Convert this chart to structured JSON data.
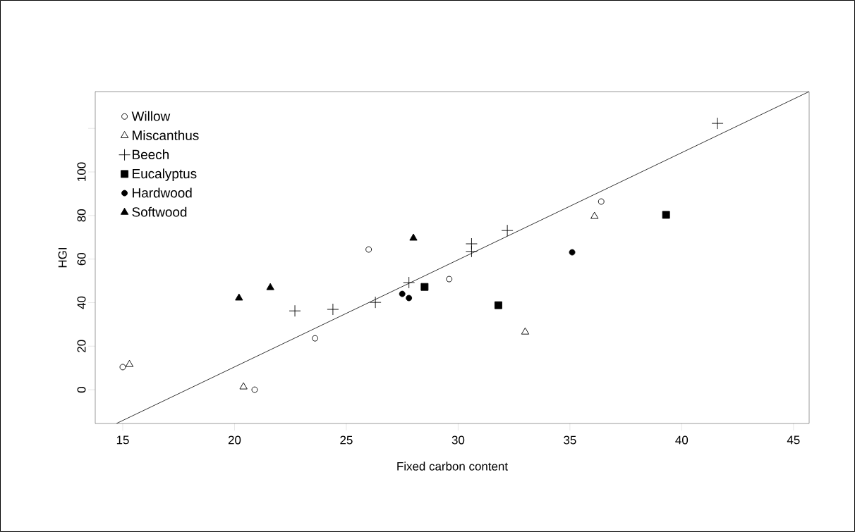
{
  "chart_data": {
    "type": "scatter",
    "xlabel": "Fixed carbon content",
    "ylabel": "HGI",
    "xlim": [
      13.77,
      45.7
    ],
    "ylim": [
      -15.5,
      136.9
    ],
    "xticks": [
      15,
      20,
      25,
      30,
      35,
      40,
      45
    ],
    "yticks": [
      0,
      20,
      40,
      60,
      80,
      100,
      {
        "value": 120,
        "label": null
      }
    ],
    "grid": false,
    "legend": "top left",
    "series": [
      {
        "name": "Willow",
        "color": "#000000",
        "marker": "circle",
        "x": [
          15.0,
          20.9,
          23.6,
          26.0,
          29.6,
          36.4
        ],
        "values": [
          10.4,
          0,
          23.6,
          64.4,
          50.8,
          86.4
        ]
      },
      {
        "name": "Miscanthus",
        "color": "#000000",
        "marker": "triangle",
        "x": [
          15.3,
          20.4,
          33.0,
          36.1
        ],
        "values": [
          11.6,
          1.3,
          26.5,
          79.6
        ]
      },
      {
        "name": "Beech",
        "color": "#000000",
        "marker": "cross",
        "x": [
          22.7,
          24.4,
          26.3,
          27.8,
          30.6,
          30.6,
          32.2,
          41.6
        ],
        "values": [
          36.2,
          36.9,
          40.1,
          49.2,
          67.0,
          63.5,
          73.1,
          122.3
        ]
      },
      {
        "name": "Eucalyptus",
        "color": "#000000",
        "marker": "square",
        "x": [
          28.5,
          31.8,
          39.3
        ],
        "values": [
          47.2,
          38.8,
          80.3
        ]
      },
      {
        "name": "Hardwood",
        "color": "#000000",
        "marker": "circle",
        "x": [
          27.5,
          27.8,
          35.1
        ],
        "values": [
          44.0,
          42.1,
          63.1
        ]
      },
      {
        "name": "Softwood",
        "color": "#000000",
        "marker": "triangle",
        "x": [
          20.2,
          21.6,
          28.0
        ],
        "values": [
          42.1,
          46.9,
          69.6
        ]
      },
      {
        "type": "line",
        "color": "#000000",
        "marker": "none",
        "line_style": "solid",
        "x": [
          14.72,
          45.7
        ],
        "values": [
          -15.5,
          136.9
        ]
      }
    ]
  }
}
